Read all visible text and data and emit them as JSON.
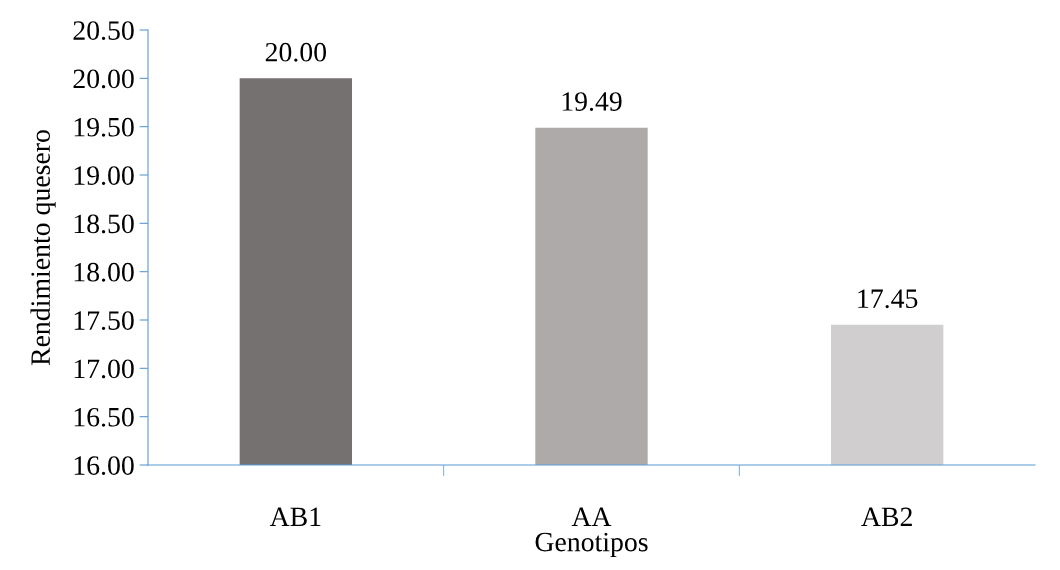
{
  "chart_data": {
    "type": "bar",
    "xlabel": "Genotipos",
    "ylabel": "Rendimiento quesero",
    "categories": [
      "AB1",
      "AA",
      "AB2"
    ],
    "values": [
      20.0,
      19.49,
      17.45
    ],
    "colors": [
      "#767171",
      "#aeaaaa",
      "#d0cece"
    ],
    "value_labels": [
      "20.00",
      "19.49",
      "17.45"
    ],
    "ylim": [
      16,
      20.5
    ],
    "yticks": [
      {
        "value": 16,
        "label": "16.00"
      },
      {
        "value": 16.5,
        "label": "16.50"
      },
      {
        "value": 17,
        "label": "17.00"
      },
      {
        "value": 17.5,
        "label": "17.50"
      },
      {
        "value": 18,
        "label": "18.00"
      },
      {
        "value": 18.5,
        "label": "18.50"
      },
      {
        "value": 19,
        "label": "19.00"
      },
      {
        "value": 19.5,
        "label": "19.50"
      },
      {
        "value": 20,
        "label": "20.00"
      },
      {
        "value": 20.5,
        "label": "20.50"
      }
    ],
    "grid": false
  }
}
